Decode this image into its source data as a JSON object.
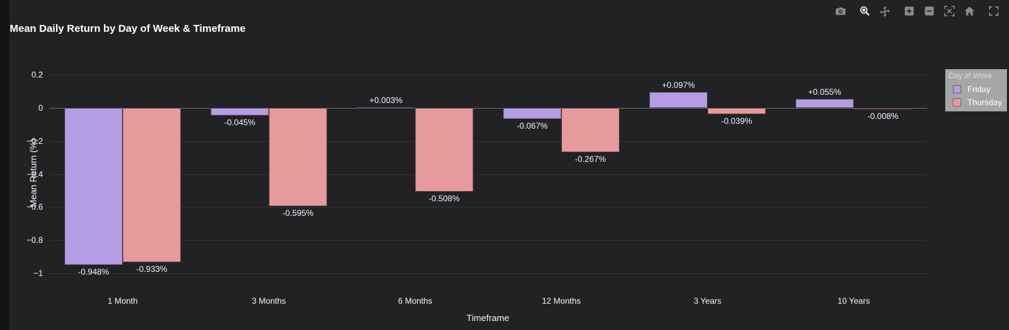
{
  "header": {
    "title": "Mean Daily Return by Day of Week & Timeframe"
  },
  "toolbar": {
    "icons": [
      "camera",
      "zoom",
      "pan",
      "zoom-in",
      "zoom-out",
      "autoscale",
      "reset-home",
      "fullscreen"
    ],
    "active_icon": "zoom"
  },
  "legend": {
    "title": "Day of Week",
    "items": [
      {
        "label": "Friday",
        "color": "#b59de3"
      },
      {
        "label": "Thursday",
        "color": "#e69a9c"
      }
    ]
  },
  "chart_data": {
    "type": "bar",
    "title": "Mean Daily Return by Day of Week & Timeframe",
    "xlabel": "Timeframe",
    "ylabel": "Mean Return (%)",
    "categories": [
      "1 Month",
      "3 Months",
      "6 Months",
      "12 Months",
      "3 Years",
      "10 Years"
    ],
    "series": [
      {
        "name": "Friday",
        "color": "#b59de3",
        "values": [
          -0.948,
          -0.045,
          0.003,
          -0.067,
          0.097,
          0.055
        ],
        "data_labels": [
          "-0.948%",
          "-0.045%",
          "+0.003%",
          "-0.067%",
          "+0.097%",
          "+0.055%"
        ]
      },
      {
        "name": "Thursday",
        "color": "#e69a9c",
        "values": [
          -0.933,
          -0.595,
          -0.508,
          -0.267,
          -0.039,
          -0.008
        ],
        "data_labels": [
          "-0.933%",
          "-0.595%",
          "-0.508%",
          "-0.267%",
          "-0.039%",
          "-0.008%"
        ]
      }
    ],
    "y_ticks": {
      "values": [
        0.2,
        0,
        -0.2,
        -0.4,
        -0.6,
        -0.8,
        -1
      ],
      "labels": [
        "0.2",
        "0",
        "−0.2",
        "−0.4",
        "−0.6",
        "−0.8",
        "−1"
      ]
    },
    "ylim": [
      -1.07,
      0.28
    ],
    "grid": true,
    "legend_position": "top-right",
    "colors": {
      "background": "#212224",
      "grid": "#32343c",
      "zero_line": "#67686e",
      "text": "#f2f5fa",
      "title": "#ffffff"
    }
  }
}
